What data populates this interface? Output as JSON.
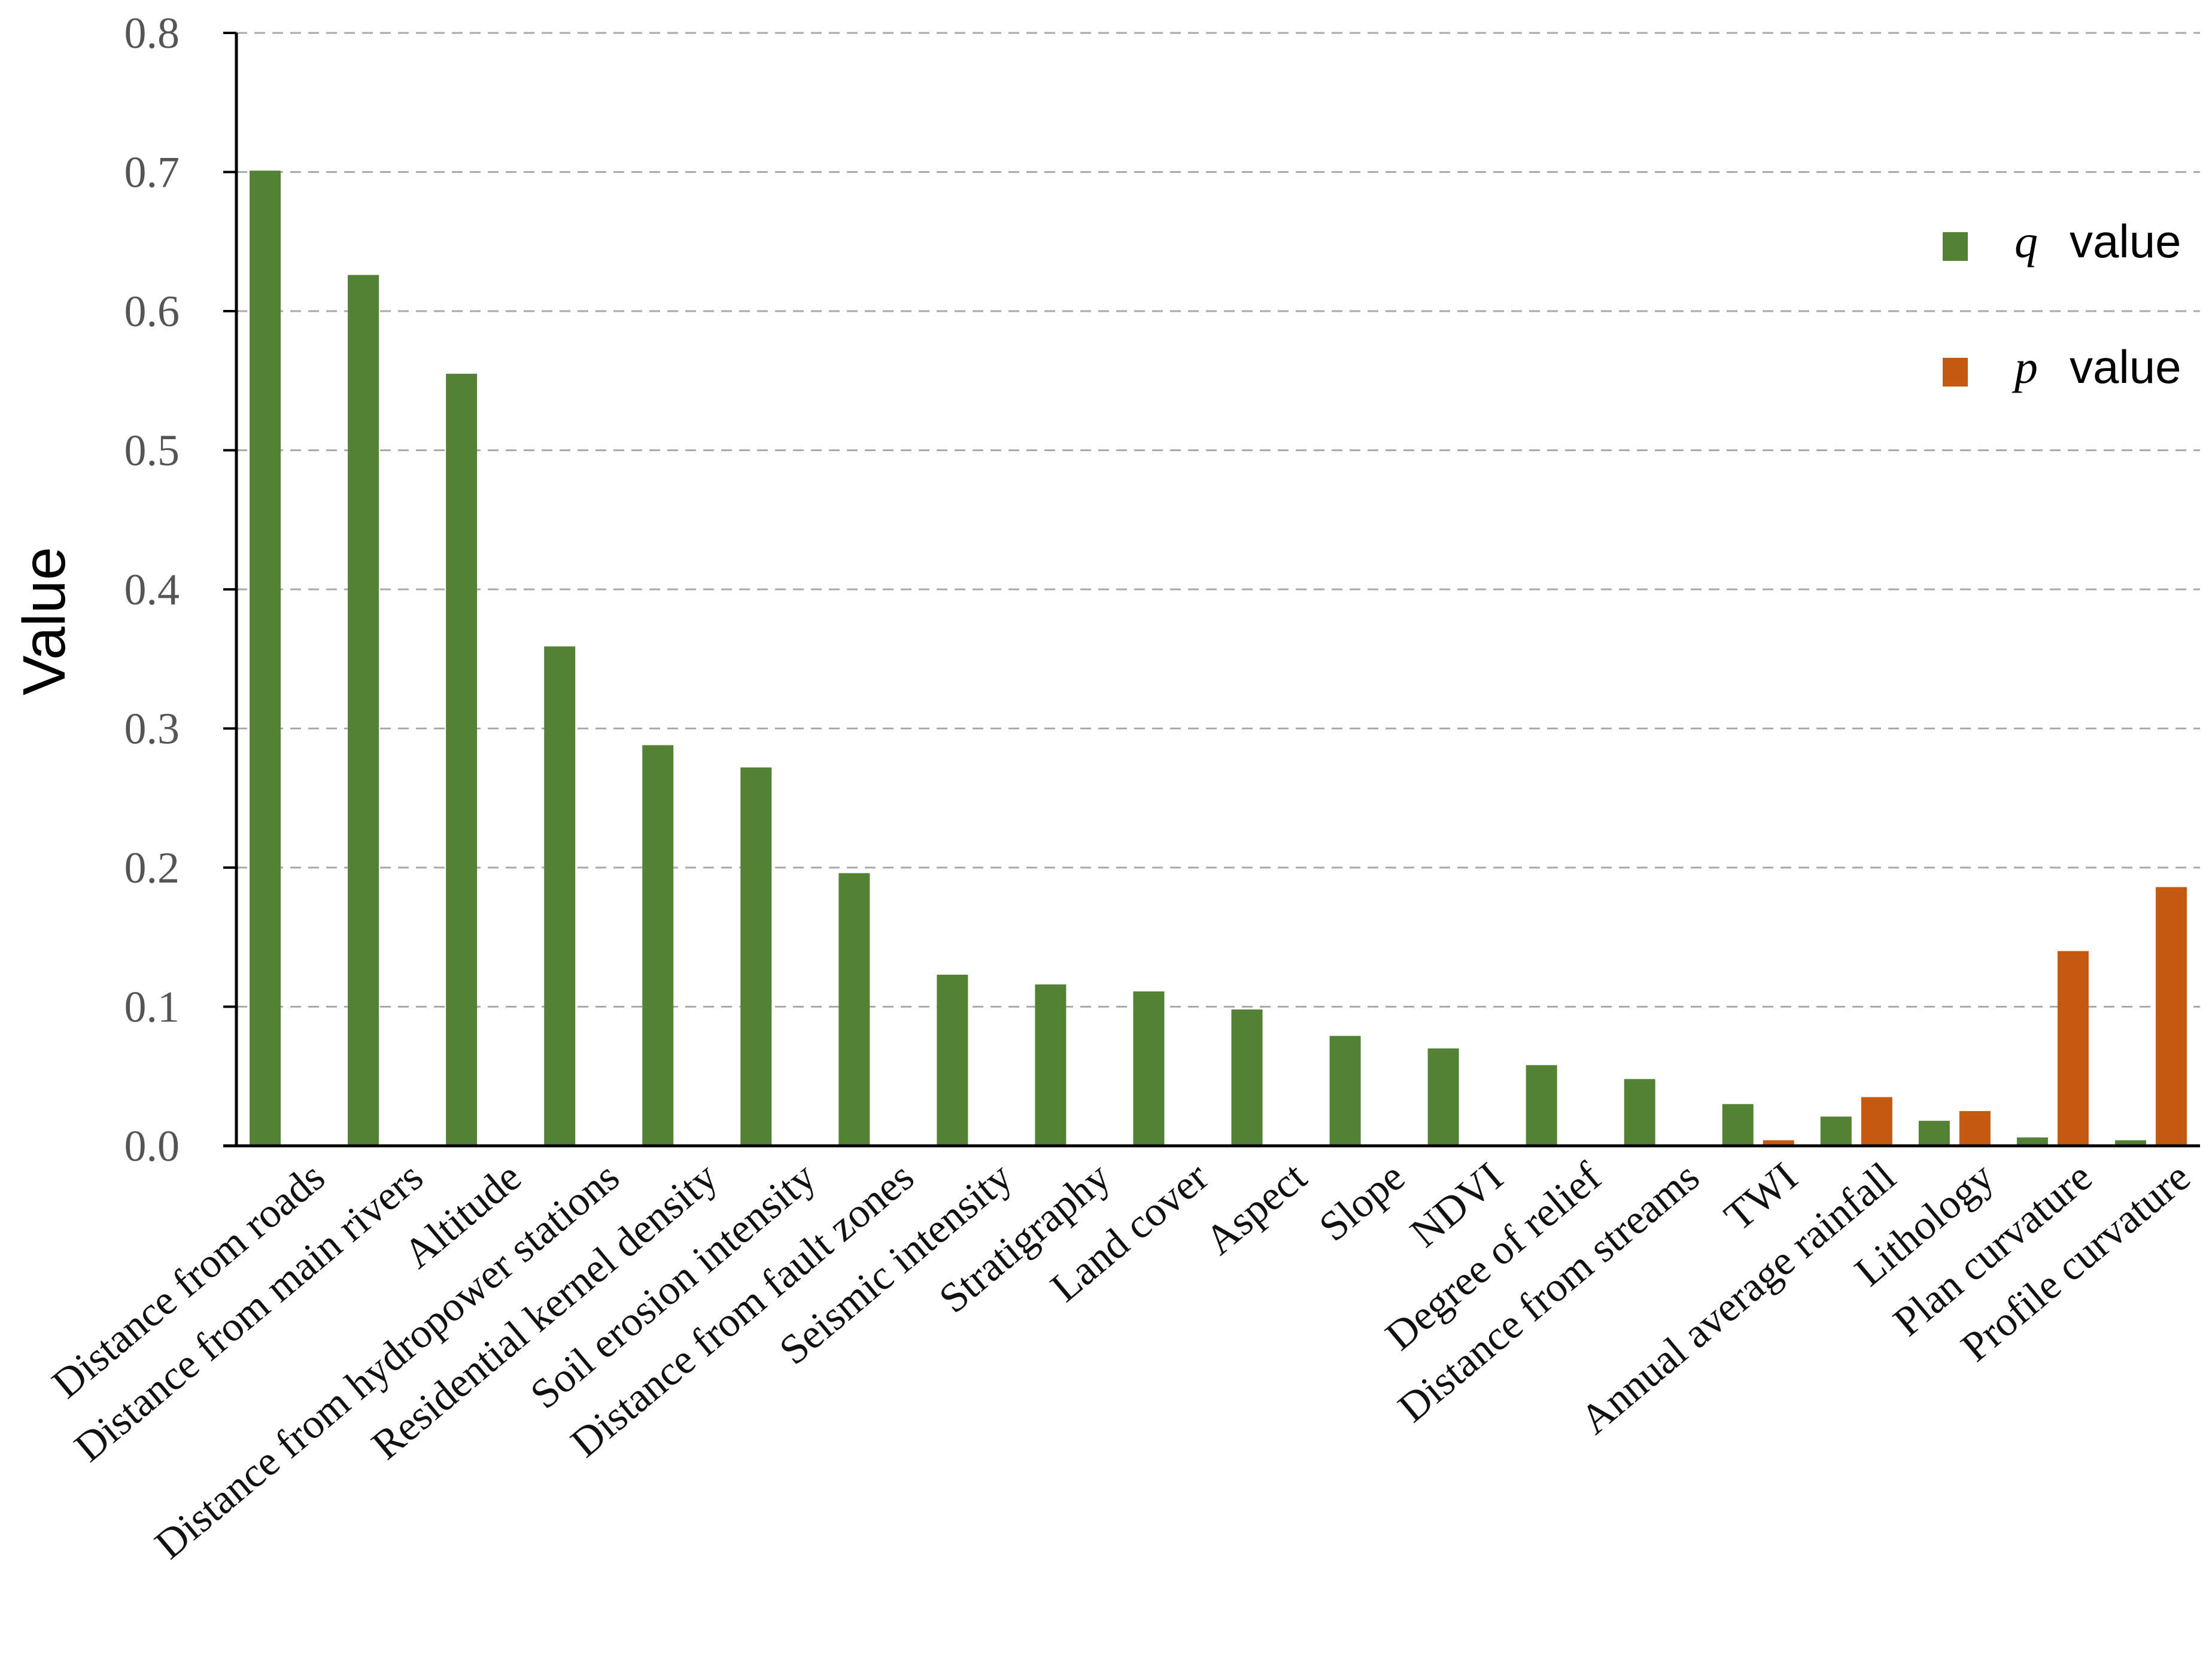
{
  "chart_data": {
    "type": "bar",
    "ylabel": "Value",
    "ylim": [
      0,
      0.8
    ],
    "yticks": [
      "0.0",
      "0.1",
      "0.2",
      "0.3",
      "0.4",
      "0.5",
      "0.6",
      "0.7",
      "0.8"
    ],
    "grid": "horizontal-dashed",
    "legend_position": "top-right",
    "categories": [
      "Distance from roads",
      "Distance from main rivers",
      "Altitude",
      "Distance from hydropower stations",
      "Residential kernel density",
      "Soil erosion intensity",
      "Distance from fault zones",
      "Seismic intensity",
      "Stratigraphy",
      "Land cover",
      "Aspect",
      "Slope",
      "NDVI",
      "Degree of relief",
      "Distance from streams",
      "TWI",
      "Annual average rainfall",
      "Lithology",
      "Plan curvature",
      "Profile curvature"
    ],
    "series": [
      {
        "name": "q",
        "label": "value",
        "color": "#548235",
        "values": [
          0.701,
          0.626,
          0.555,
          0.359,
          0.288,
          0.272,
          0.196,
          0.123,
          0.116,
          0.111,
          0.098,
          0.079,
          0.07,
          0.058,
          0.048,
          0.03,
          0.021,
          0.018,
          0.006,
          0.004
        ]
      },
      {
        "name": "p",
        "label": "value",
        "color": "#C55A11",
        "values": [
          0,
          0,
          0,
          0,
          0,
          0,
          0,
          0,
          0,
          0,
          0,
          0,
          0,
          0,
          0,
          0.004,
          0.035,
          0.025,
          0.14,
          0.186
        ]
      }
    ]
  }
}
